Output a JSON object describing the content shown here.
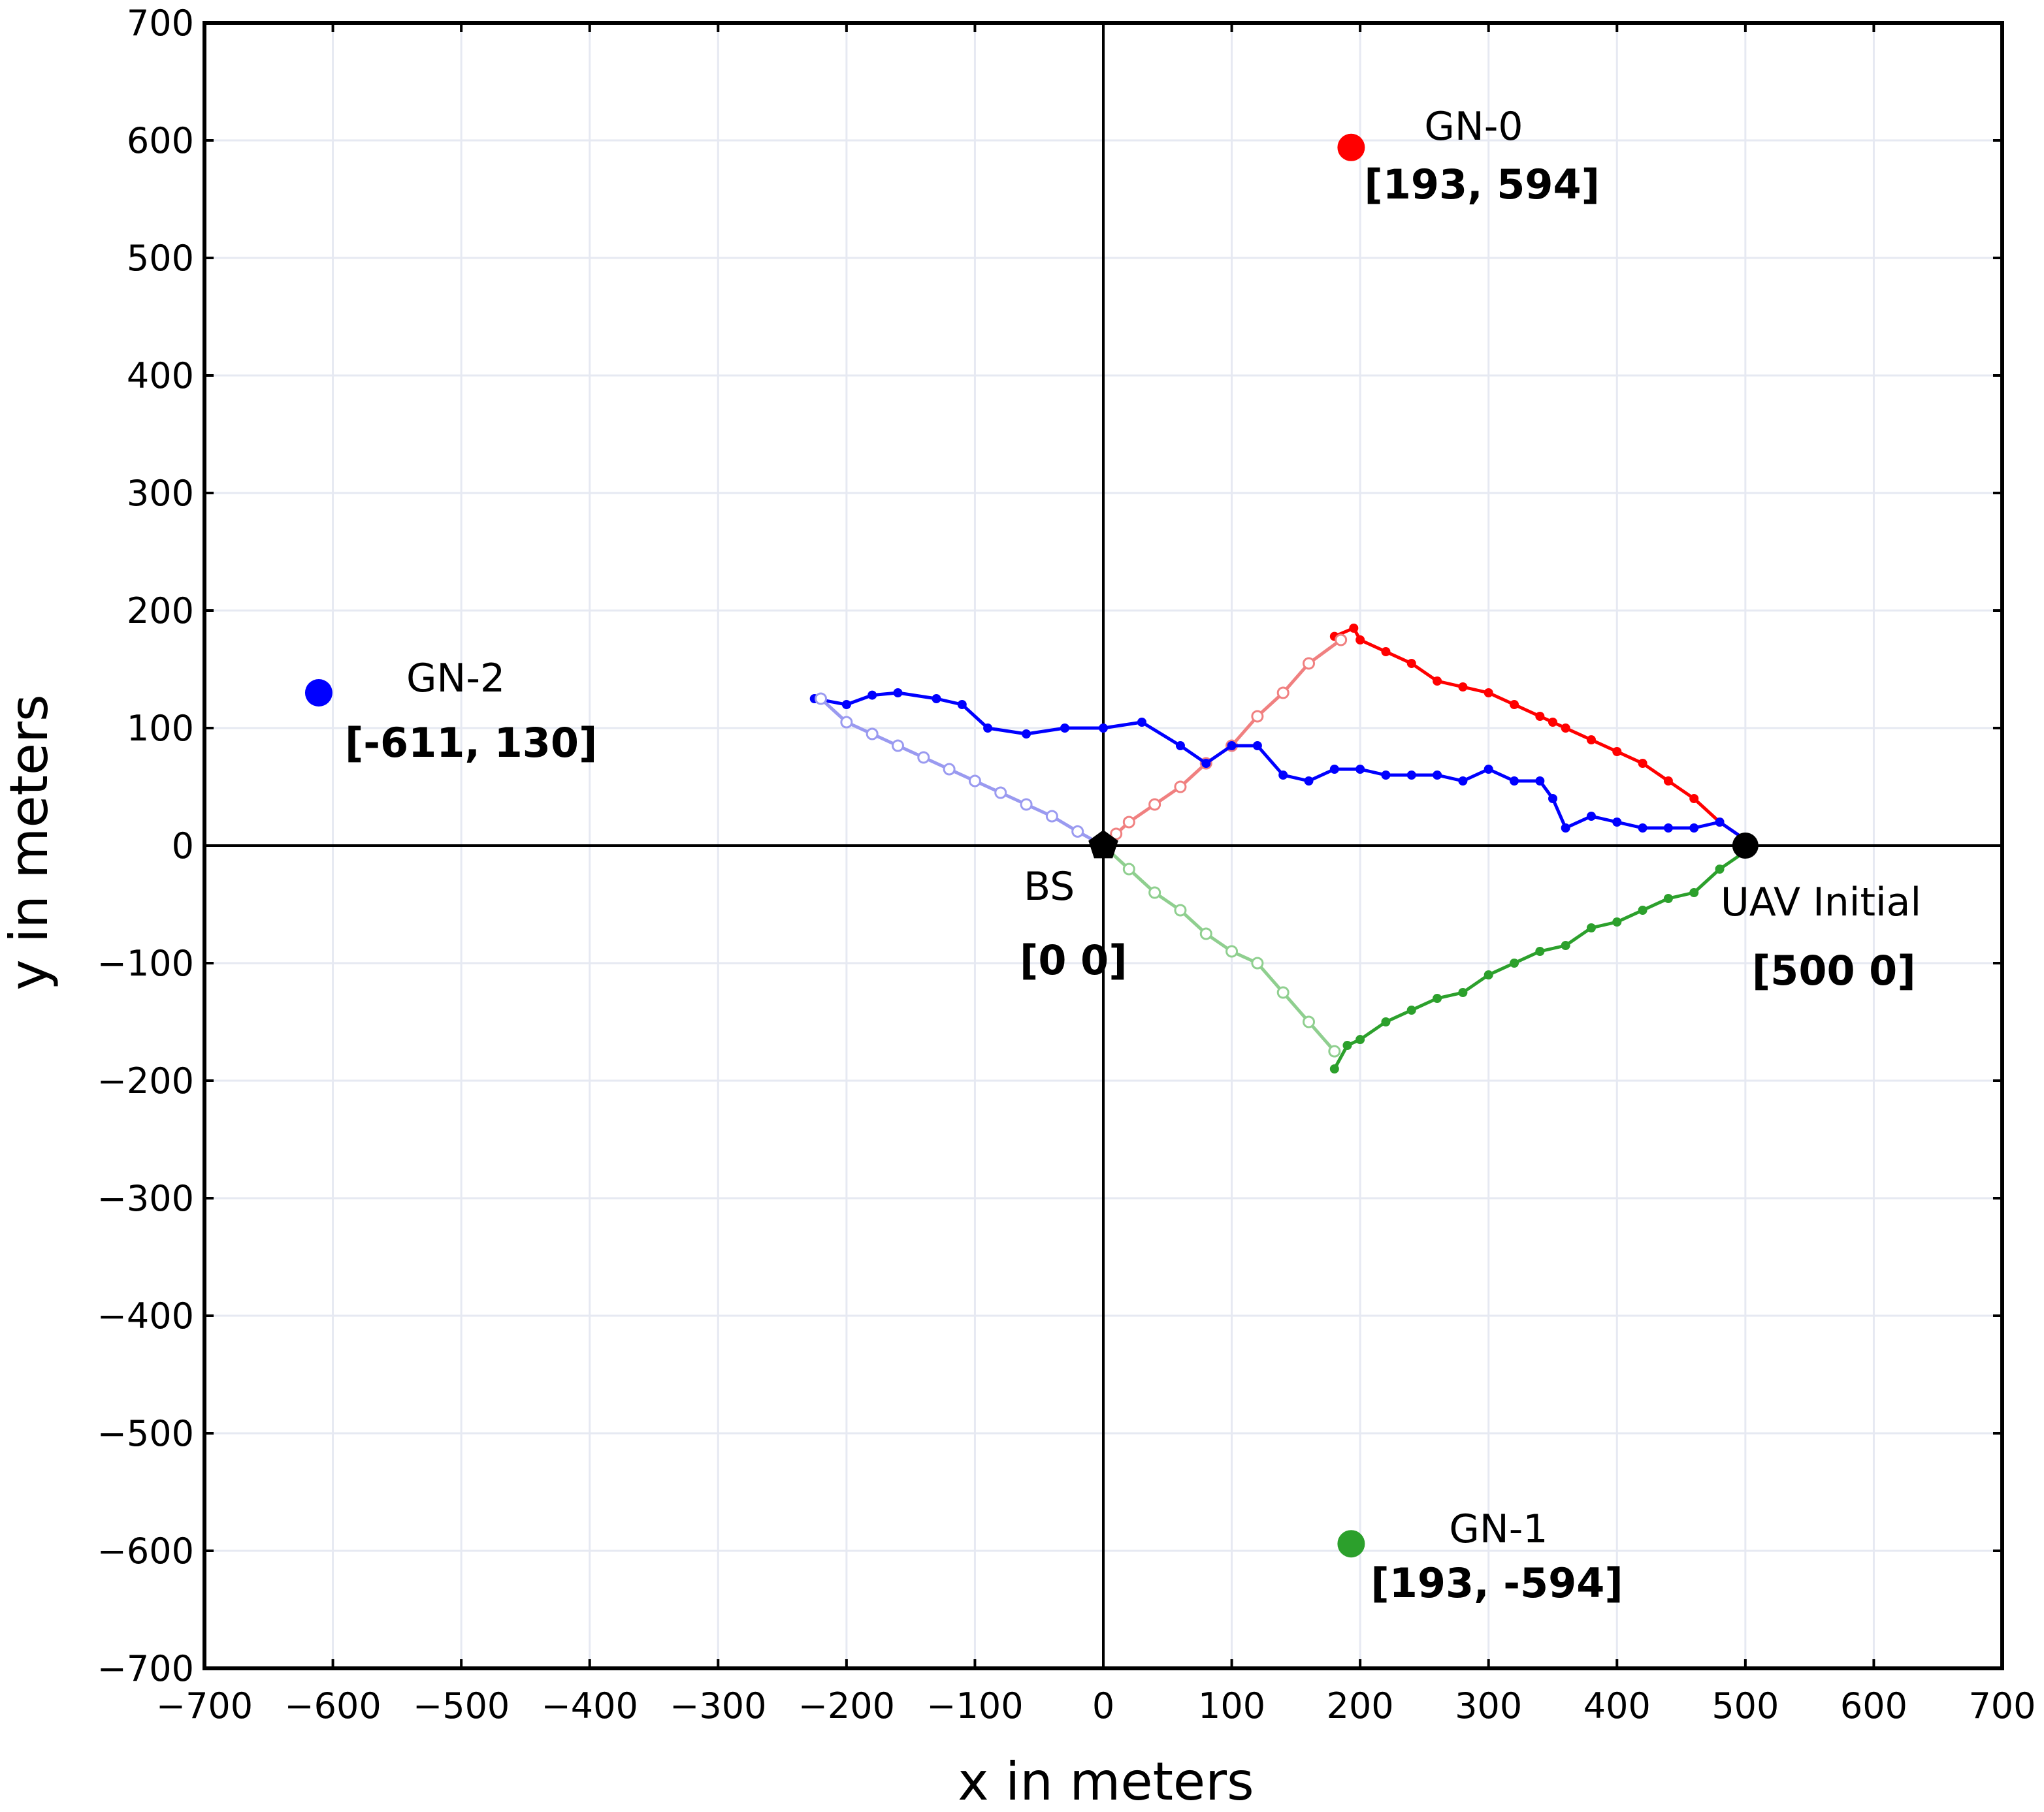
{
  "colors": {
    "gn0": "#ff0000",
    "gn1": "#2ca02c",
    "gn2": "#0000ff",
    "gn0_inbound": "#f08080",
    "gn1_inbound": "#8fcf8f",
    "gn2_inbound": "#9a9af0",
    "grid": "#e6e9f2",
    "axis": "#000000"
  },
  "chart_data": {
    "type": "scatter",
    "xlabel": "x in meters",
    "ylabel": "y in meters",
    "xlim": [
      -700,
      700
    ],
    "ylim": [
      -700,
      700
    ],
    "xticks": [
      -700,
      -600,
      -500,
      -400,
      -300,
      -200,
      -100,
      0,
      100,
      200,
      300,
      400,
      500,
      600,
      700
    ],
    "yticks": [
      -700,
      -600,
      -500,
      -400,
      -300,
      -200,
      -100,
      0,
      100,
      200,
      300,
      400,
      500,
      600,
      700
    ],
    "grid": true,
    "points": [
      {
        "name": "GN-0",
        "label": "[193, 594]",
        "x": 193,
        "y": 594,
        "color": "#ff0000"
      },
      {
        "name": "GN-1",
        "label": "[193, -594]",
        "x": 193,
        "y": -594,
        "color": "#2ca02c"
      },
      {
        "name": "GN-2",
        "label": "[-611, 130]",
        "x": -611,
        "y": 130,
        "color": "#0000ff"
      },
      {
        "name": "BS",
        "label": "[0 0]",
        "x": 0,
        "y": 0,
        "color": "#000000"
      },
      {
        "name": "UAV Initial",
        "label": "[500 0]",
        "x": 500,
        "y": 0,
        "color": "#000000"
      }
    ],
    "series": [
      {
        "color": "#ff0000",
        "marker": "filled",
        "x": [
          500,
          480,
          460,
          440,
          420,
          400,
          380,
          360,
          350,
          340,
          320,
          300,
          280,
          260,
          240,
          220,
          200,
          195,
          180
        ],
        "y": [
          5,
          20,
          40,
          55,
          70,
          80,
          90,
          100,
          105,
          110,
          120,
          130,
          135,
          140,
          155,
          165,
          175,
          185,
          178
        ]
      },
      {
        "color": "#f08080",
        "marker": "hollow",
        "x": [
          185,
          160,
          140,
          120,
          100,
          80,
          60,
          40,
          20,
          10,
          0
        ],
        "y": [
          175,
          155,
          130,
          110,
          85,
          70,
          50,
          35,
          20,
          10,
          0
        ]
      },
      {
        "color": "#2ca02c",
        "marker": "filled",
        "x": [
          500,
          480,
          460,
          440,
          420,
          400,
          380,
          360,
          340,
          320,
          300,
          280,
          260,
          240,
          220,
          200,
          190,
          180
        ],
        "y": [
          -5,
          -20,
          -40,
          -45,
          -55,
          -65,
          -70,
          -85,
          -90,
          -100,
          -110,
          -125,
          -130,
          -140,
          -150,
          -165,
          -170,
          -190
        ]
      },
      {
        "color": "#8fcf8f",
        "marker": "hollow",
        "x": [
          180,
          160,
          140,
          120,
          100,
          80,
          60,
          40,
          20,
          0
        ],
        "y": [
          -175,
          -150,
          -125,
          -100,
          -90,
          -75,
          -55,
          -40,
          -20,
          0
        ]
      },
      {
        "color": "#0000ff",
        "marker": "filled",
        "x": [
          500,
          480,
          460,
          440,
          420,
          400,
          380,
          360,
          350,
          340,
          320,
          300,
          280,
          260,
          240,
          220,
          200,
          180,
          160,
          140,
          120,
          100,
          80,
          60,
          30,
          0,
          -30,
          -60,
          -90,
          -110,
          -130,
          -160,
          -180,
          -200,
          -225
        ],
        "y": [
          5,
          20,
          15,
          15,
          15,
          20,
          25,
          15,
          40,
          55,
          55,
          65,
          55,
          60,
          60,
          60,
          65,
          65,
          55,
          60,
          85,
          85,
          70,
          85,
          105,
          100,
          100,
          95,
          100,
          120,
          125,
          130,
          128,
          120,
          125
        ]
      },
      {
        "color": "#9a9af0",
        "marker": "hollow",
        "x": [
          -220,
          -200,
          -180,
          -160,
          -140,
          -120,
          -100,
          -80,
          -60,
          -40,
          -20,
          0
        ],
        "y": [
          125,
          105,
          95,
          85,
          75,
          65,
          55,
          45,
          35,
          25,
          12,
          0
        ]
      }
    ]
  }
}
